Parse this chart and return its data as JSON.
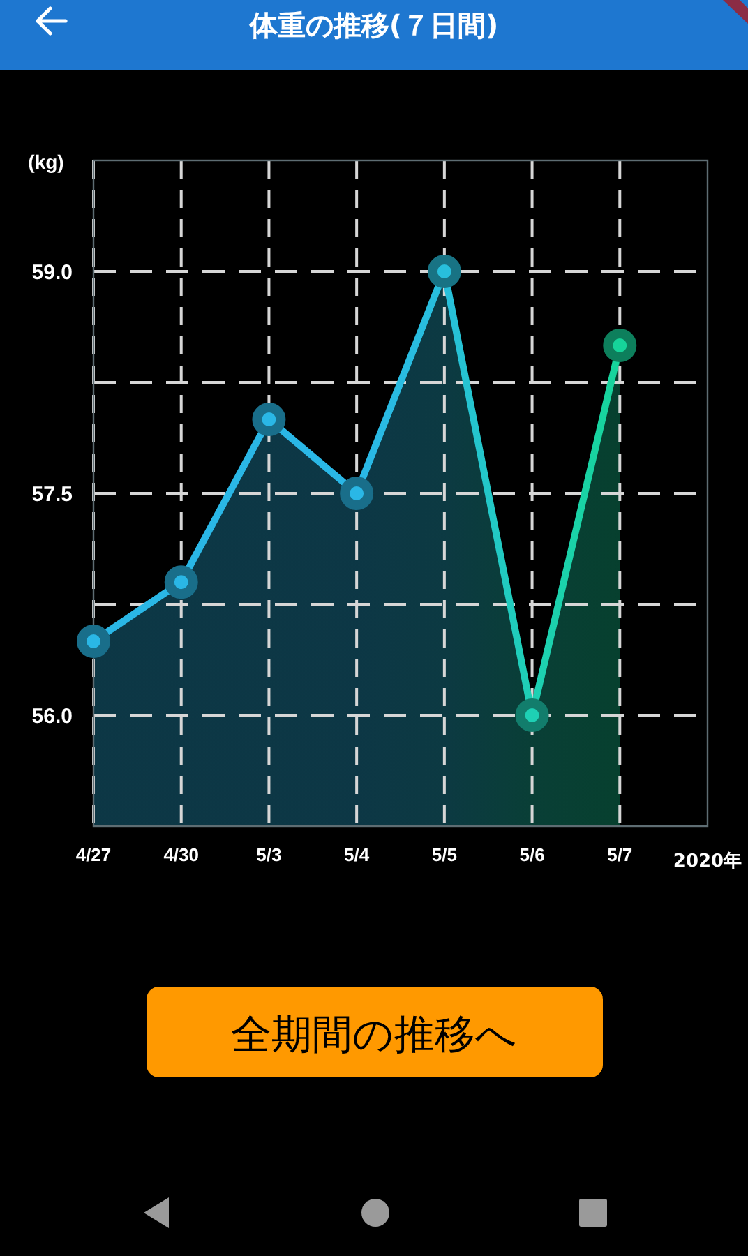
{
  "chart_data": {
    "type": "area",
    "title": "体重の推移(７日間)",
    "ylabel": "(kg)",
    "xlabel": "2020年",
    "categories": [
      "4/27",
      "4/30",
      "5/3",
      "5/4",
      "5/5",
      "5/6",
      "5/7"
    ],
    "values": [
      56.5,
      56.9,
      58.0,
      57.5,
      59.0,
      56.0,
      58.5
    ],
    "colors": [
      "#2ab7e6",
      "#2ab7e6",
      "#2ab7e6",
      "#2ab7e6",
      "#28bfdc",
      "#1ed0b4",
      "#16d49a"
    ],
    "ylim": [
      55.25,
      59.75
    ],
    "yticks": [
      {
        "value": 56,
        "label": "56.0"
      },
      {
        "value": 56.75,
        "label": null
      },
      {
        "value": 57.5,
        "label": "57.5"
      },
      {
        "value": 58.25,
        "label": null
      },
      {
        "value": 59,
        "label": "59.0"
      }
    ],
    "grid": true,
    "marker": "circle",
    "line_style": "solid",
    "annotations": [
      "全期間の推移へ"
    ]
  }
}
